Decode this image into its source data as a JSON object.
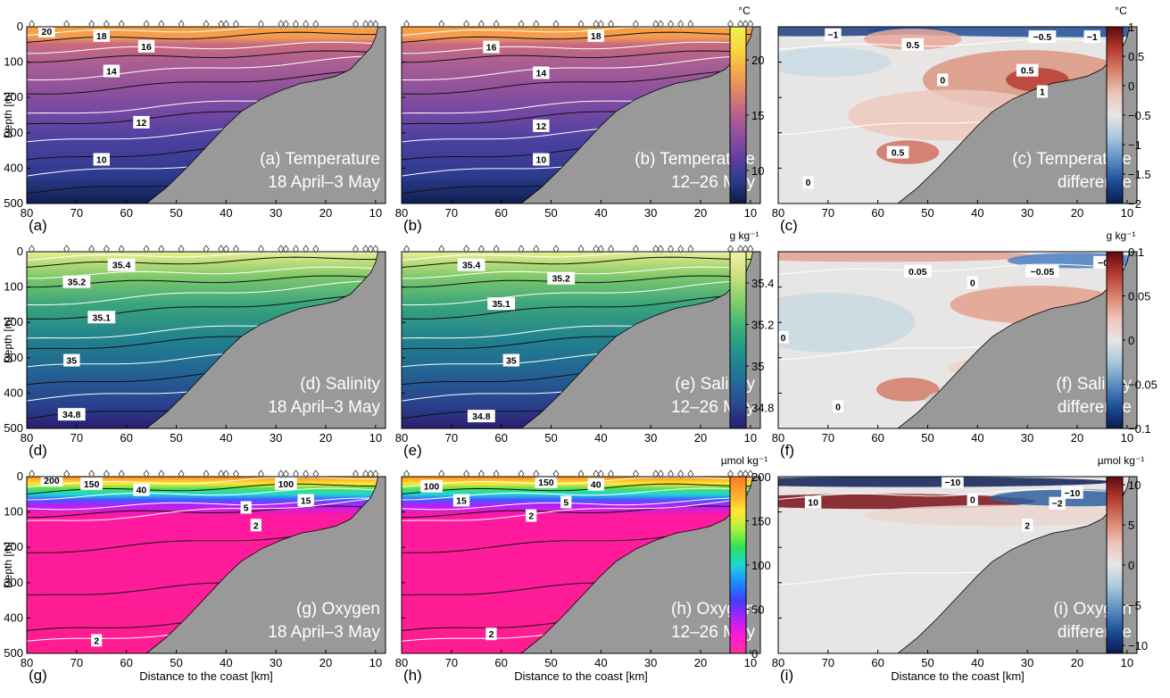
{
  "chart_data": {
    "type": "contour-sections",
    "xlabel": "Distance to the coast [km]",
    "ylabel": "Depth [m]",
    "x_ticks": [
      80,
      70,
      60,
      50,
      40,
      30,
      20,
      10
    ],
    "y_ticks": [
      0,
      100,
      200,
      300,
      400,
      500
    ],
    "xlim": [
      80,
      8
    ],
    "ylim": [
      0,
      500
    ],
    "shelf_bottom_depth": [
      [
        56,
        500
      ],
      [
        52,
        455
      ],
      [
        48,
        400
      ],
      [
        44,
        340
      ],
      [
        40,
        280
      ],
      [
        37,
        240
      ],
      [
        33,
        205
      ],
      [
        29,
        180
      ],
      [
        25,
        160
      ],
      [
        21,
        150
      ],
      [
        18,
        140
      ],
      [
        15,
        120
      ],
      [
        13,
        90
      ],
      [
        11,
        60
      ],
      [
        10,
        30
      ],
      [
        9.5,
        0
      ]
    ],
    "station_markers_km": [
      79,
      72,
      67,
      64,
      61,
      56,
      53,
      49,
      44,
      41,
      40,
      38,
      33,
      29,
      28,
      26,
      24,
      22,
      14,
      12,
      11,
      10
    ],
    "rows": [
      {
        "variable": "Temperature",
        "colorbar": {
          "unit": "°C",
          "ticks": [
            "20",
            "15",
            "10"
          ],
          "range": [
            7,
            23
          ]
        },
        "diff_colorbar": {
          "unit": "°C",
          "ticks": [
            "1",
            "0.5",
            "0",
            "−0.5",
            "−1",
            "−1.5",
            "−2"
          ],
          "range": [
            -2,
            1
          ]
        },
        "panels": [
          {
            "letter": "(a)",
            "title": "(a) Temperature",
            "subtitle": "18 April–3 May",
            "labels": [
              {
                "text": "20",
                "x": 76,
                "y": 12
              },
              {
                "text": "18",
                "x": 65,
                "y": 25
              },
              {
                "text": "16",
                "x": 56,
                "y": 55
              },
              {
                "text": "14",
                "x": 63,
                "y": 125
              },
              {
                "text": "12",
                "x": 57,
                "y": 270
              },
              {
                "text": "10",
                "x": 65,
                "y": 375
              }
            ]
          },
          {
            "letter": "(b)",
            "title": "(b) Temperature",
            "subtitle": "12–26 May",
            "labels": [
              {
                "text": "18",
                "x": 41,
                "y": 25
              },
              {
                "text": "16",
                "x": 62,
                "y": 57
              },
              {
                "text": "14",
                "x": 52,
                "y": 130
              },
              {
                "text": "12",
                "x": 52,
                "y": 280
              },
              {
                "text": "10",
                "x": 52,
                "y": 375
              }
            ]
          },
          {
            "letter": "(c)",
            "title": "(c) Temperature",
            "subtitle": "difference",
            "labels": [
              {
                "text": "−1",
                "x": 69,
                "y": 22
              },
              {
                "text": "0.5",
                "x": 53,
                "y": 50
              },
              {
                "text": "−0.5",
                "x": 27,
                "y": 28
              },
              {
                "text": "−1",
                "x": 17,
                "y": 28
              },
              {
                "text": "0",
                "x": 47,
                "y": 150
              },
              {
                "text": "0.5",
                "x": 30,
                "y": 123
              },
              {
                "text": "1",
                "x": 27,
                "y": 183
              },
              {
                "text": "0.5",
                "x": 56,
                "y": 355
              },
              {
                "text": "0",
                "x": 74,
                "y": 440
              }
            ]
          }
        ]
      },
      {
        "variable": "Salinity",
        "colorbar": {
          "unit": "g kg⁻¹",
          "ticks": [
            "35.4",
            "35.2",
            "35",
            "34.8"
          ],
          "range": [
            34.7,
            35.55
          ]
        },
        "diff_colorbar": {
          "unit": "g kg⁻¹",
          "ticks": [
            "0.1",
            "0.05",
            "0",
            "−0.05",
            "−0.1"
          ],
          "range": [
            -0.1,
            0.1
          ]
        },
        "panels": [
          {
            "letter": "(d)",
            "title": "(d) Salinity",
            "subtitle": "18 April–3 May",
            "labels": [
              {
                "text": "35.4",
                "x": 61,
                "y": 37
              },
              {
                "text": "35.2",
                "x": 70,
                "y": 85
              },
              {
                "text": "35.1",
                "x": 65,
                "y": 185
              },
              {
                "text": "35",
                "x": 71,
                "y": 307
              },
              {
                "text": "34.8",
                "x": 71,
                "y": 460
              }
            ]
          },
          {
            "letter": "(e)",
            "title": "(e) Salinity",
            "subtitle": "12–26 May",
            "labels": [
              {
                "text": "35.4",
                "x": 66,
                "y": 37
              },
              {
                "text": "35.2",
                "x": 48,
                "y": 75
              },
              {
                "text": "35.1",
                "x": 60,
                "y": 147
              },
              {
                "text": "35",
                "x": 58,
                "y": 307
              },
              {
                "text": "34.8",
                "x": 64,
                "y": 465
              }
            ]
          },
          {
            "letter": "(f)",
            "title": "(f) Salinity",
            "subtitle": "difference",
            "labels": [
              {
                "text": "0.05",
                "x": 52,
                "y": 55
              },
              {
                "text": "0",
                "x": 41,
                "y": 87
              },
              {
                "text": "−0.05",
                "x": 27,
                "y": 55
              },
              {
                "text": "−0.1",
                "x": 14,
                "y": 30
              },
              {
                "text": "0",
                "x": 79,
                "y": 242
              },
              {
                "text": "0",
                "x": 68,
                "y": 438
              }
            ]
          }
        ]
      },
      {
        "variable": "Oxygen",
        "colorbar": {
          "unit": "µmol kg⁻¹",
          "ticks": [
            "200",
            "150",
            "100",
            "50",
            "0"
          ],
          "range": [
            0,
            200
          ]
        },
        "diff_colorbar": {
          "unit": "µmol kg⁻¹",
          "ticks": [
            "10",
            "5",
            "0",
            "−5",
            "−10"
          ],
          "range": [
            -11,
            11
          ]
        },
        "panels": [
          {
            "letter": "(g)",
            "title": "(g) Oxygen",
            "subtitle": "18 April–3 May",
            "labels": [
              {
                "text": "200",
                "x": 75,
                "y": 10
              },
              {
                "text": "150",
                "x": 67,
                "y": 20
              },
              {
                "text": "40",
                "x": 57,
                "y": 37
              },
              {
                "text": "100",
                "x": 28,
                "y": 20
              },
              {
                "text": "15",
                "x": 24,
                "y": 67
              },
              {
                "text": "5",
                "x": 36,
                "y": 87
              },
              {
                "text": "2",
                "x": 34,
                "y": 137
              },
              {
                "text": "2",
                "x": 66,
                "y": 463
              }
            ]
          },
          {
            "letter": "(h)",
            "title": "(h) Oxygen",
            "subtitle": "12–26 May",
            "labels": [
              {
                "text": "100",
                "x": 74,
                "y": 27
              },
              {
                "text": "150",
                "x": 51,
                "y": 15
              },
              {
                "text": "40",
                "x": 41,
                "y": 22
              },
              {
                "text": "15",
                "x": 68,
                "y": 67
              },
              {
                "text": "5",
                "x": 47,
                "y": 72
              },
              {
                "text": "2",
                "x": 54,
                "y": 110
              },
              {
                "text": "2",
                "x": 62,
                "y": 445
              }
            ]
          },
          {
            "letter": "(i)",
            "title": "(i) Oxygen",
            "subtitle": "difference",
            "labels": [
              {
                "text": "−10",
                "x": 45,
                "y": 15
              },
              {
                "text": "10",
                "x": 73,
                "y": 72
              },
              {
                "text": "0",
                "x": 41,
                "y": 65
              },
              {
                "text": "−10",
                "x": 21,
                "y": 45
              },
              {
                "text": "−2",
                "x": 24,
                "y": 75
              },
              {
                "text": "2",
                "x": 30,
                "y": 137
              }
            ]
          }
        ]
      }
    ]
  }
}
